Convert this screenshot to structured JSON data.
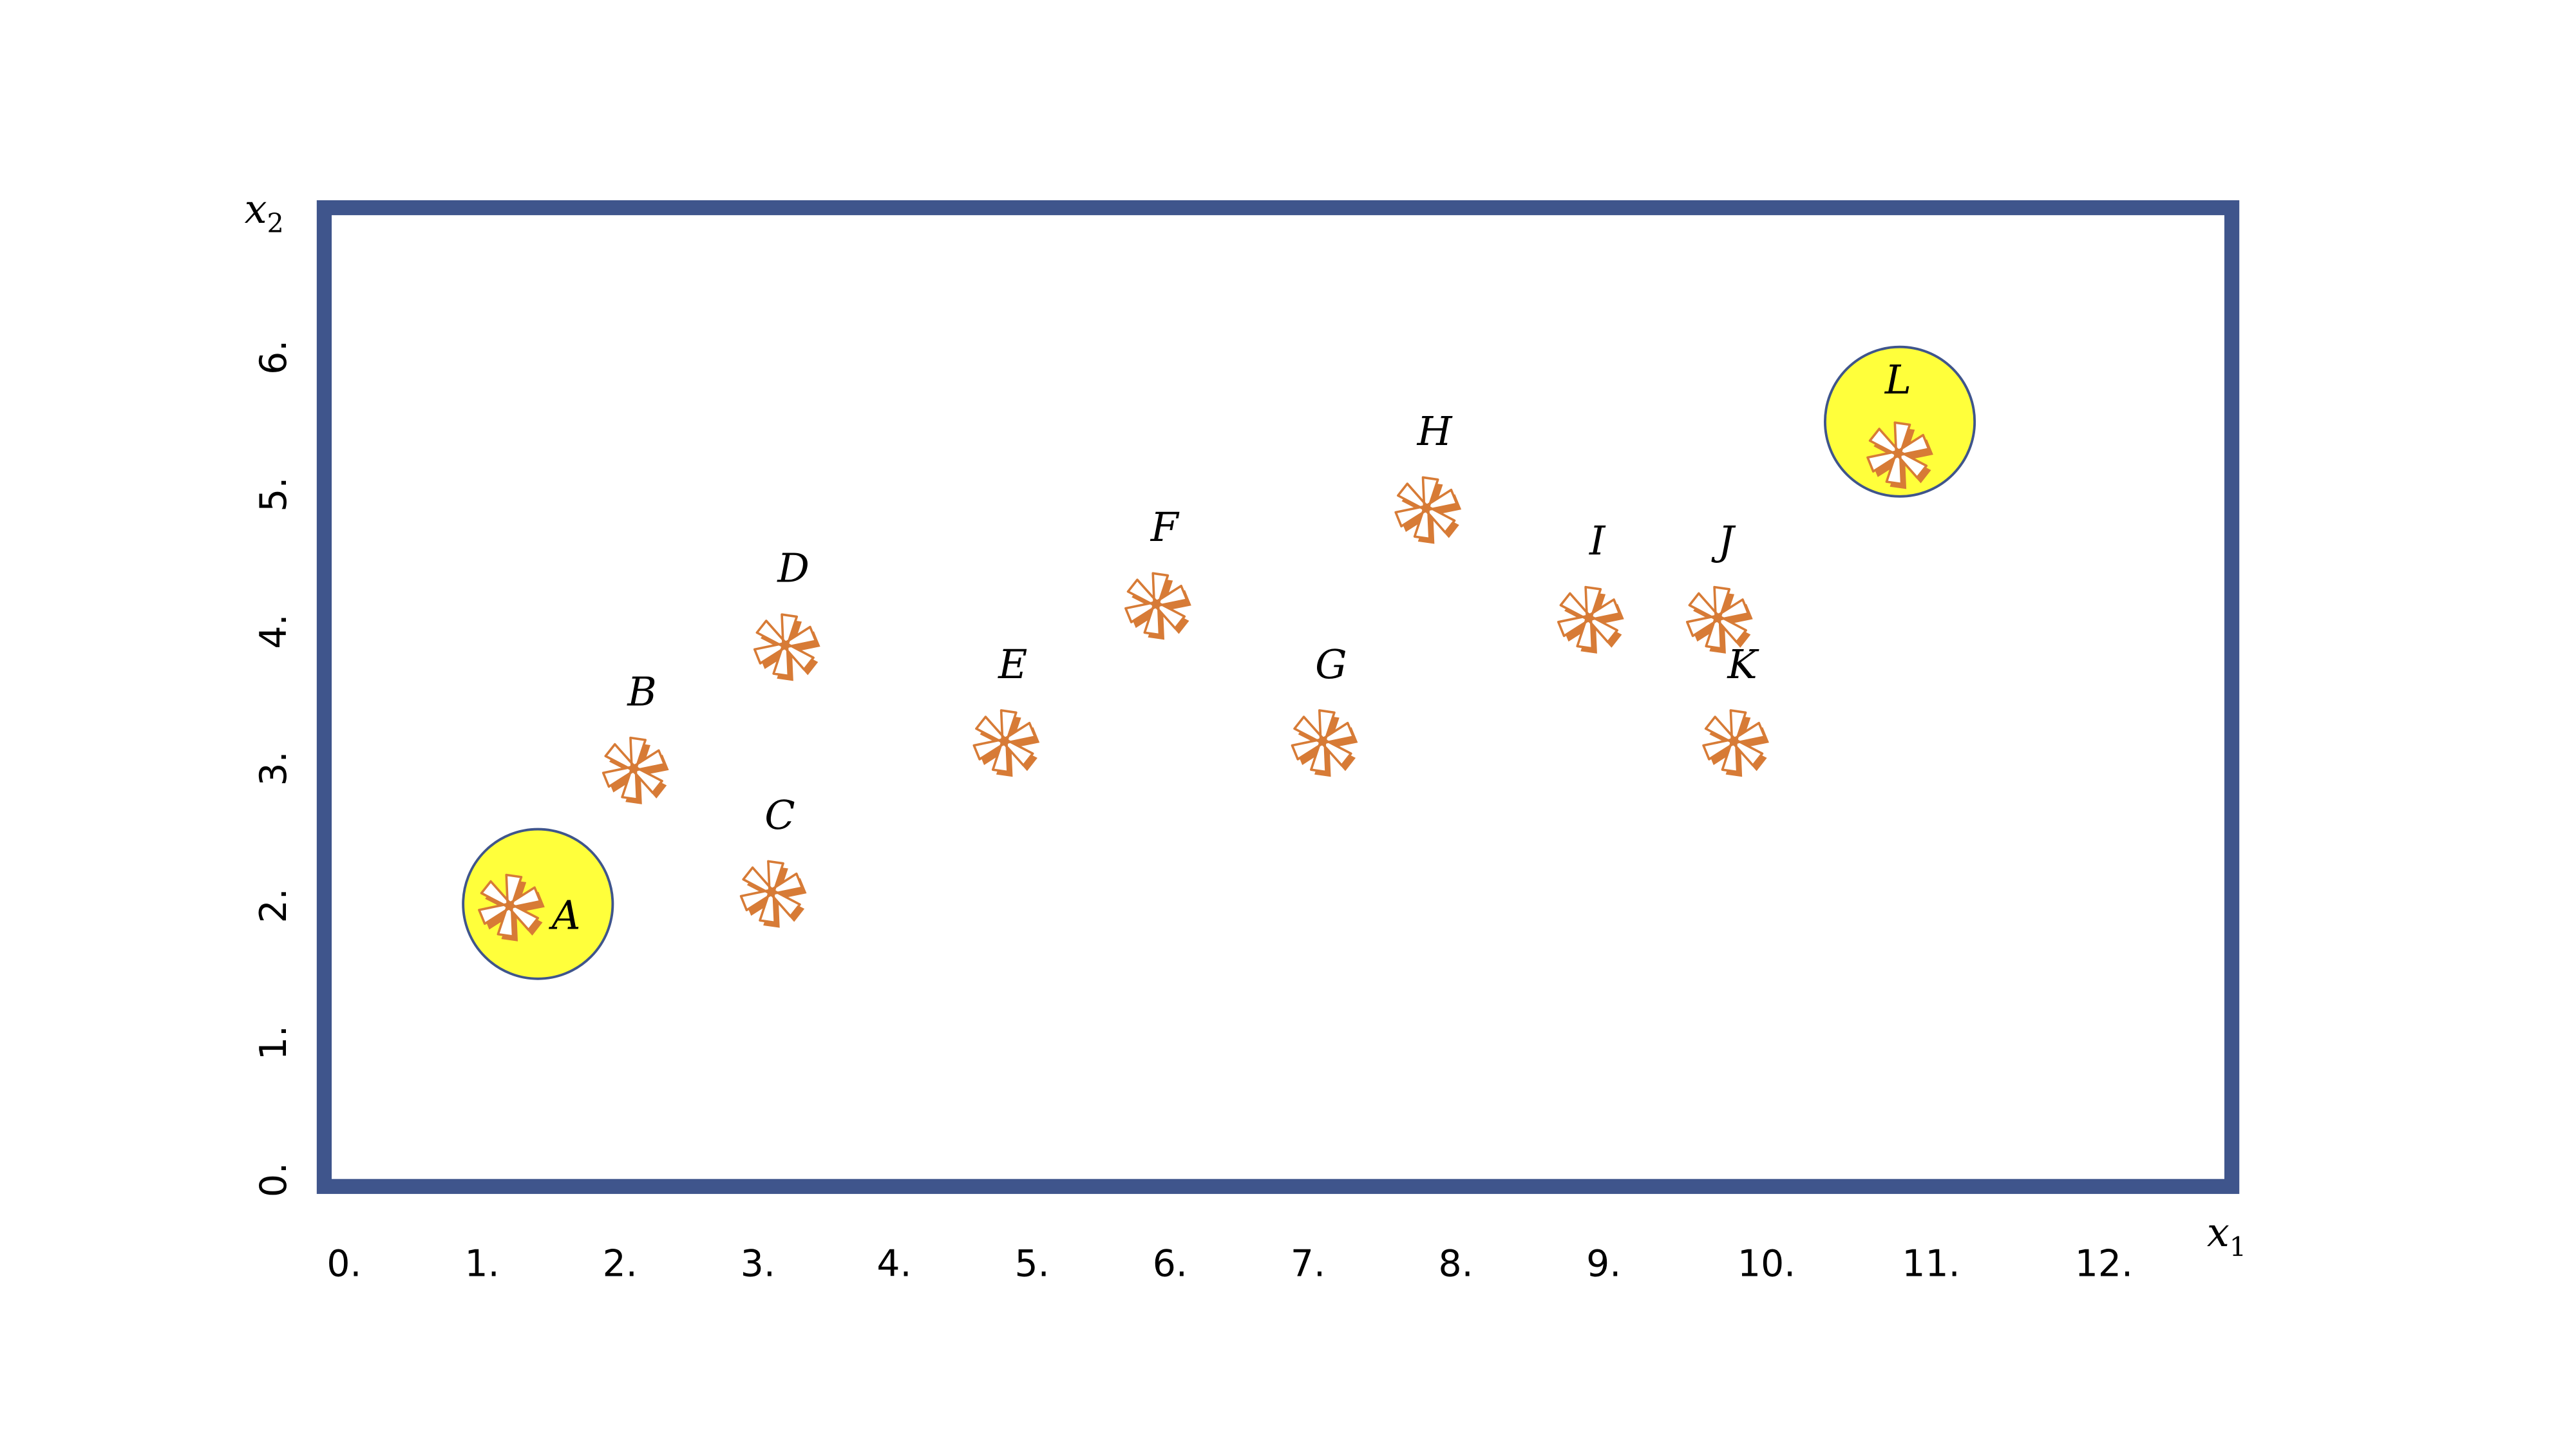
{
  "chart_data": {
    "type": "scatter",
    "xlabel": "x",
    "xlabel_subscript": "1",
    "ylabel": "x",
    "ylabel_subscript": "2",
    "x_ticks": [
      "0.",
      "1.",
      "2.",
      "3.",
      "4.",
      "5.",
      "6.",
      "7.",
      "8.",
      "9.",
      "10.",
      "11.",
      "12."
    ],
    "y_ticks": [
      "0.",
      "1.",
      "2.",
      "3.",
      "4.",
      "5.",
      "6."
    ],
    "xlim": [
      0,
      12.5
    ],
    "ylim": [
      0,
      7
    ],
    "grid": false,
    "marker": "asterisk",
    "points": [
      {
        "label": "A",
        "x": 1.2,
        "y": 2.0,
        "highlighted": true
      },
      {
        "label": "B",
        "x": 2.1,
        "y": 3.0,
        "highlighted": false
      },
      {
        "label": "C",
        "x": 3.1,
        "y": 2.1,
        "highlighted": false
      },
      {
        "label": "D",
        "x": 3.2,
        "y": 3.9,
        "highlighted": false
      },
      {
        "label": "E",
        "x": 4.8,
        "y": 3.2,
        "highlighted": false
      },
      {
        "label": "F",
        "x": 5.9,
        "y": 4.2,
        "highlighted": false
      },
      {
        "label": "G",
        "x": 7.1,
        "y": 3.2,
        "highlighted": false
      },
      {
        "label": "H",
        "x": 7.8,
        "y": 4.9,
        "highlighted": false
      },
      {
        "label": "I",
        "x": 8.9,
        "y": 4.1,
        "highlighted": false
      },
      {
        "label": "J",
        "x": 9.7,
        "y": 4.1,
        "highlighted": false
      },
      {
        "label": "K",
        "x": 9.8,
        "y": 3.2,
        "highlighted": false
      },
      {
        "label": "L",
        "x": 10.8,
        "y": 5.3,
        "highlighted": true
      }
    ],
    "colors": {
      "frame": "#3F558C",
      "marker": "#D77B36",
      "highlight_fill": "#FFFF3B",
      "highlight_stroke": "#3F558C"
    }
  }
}
